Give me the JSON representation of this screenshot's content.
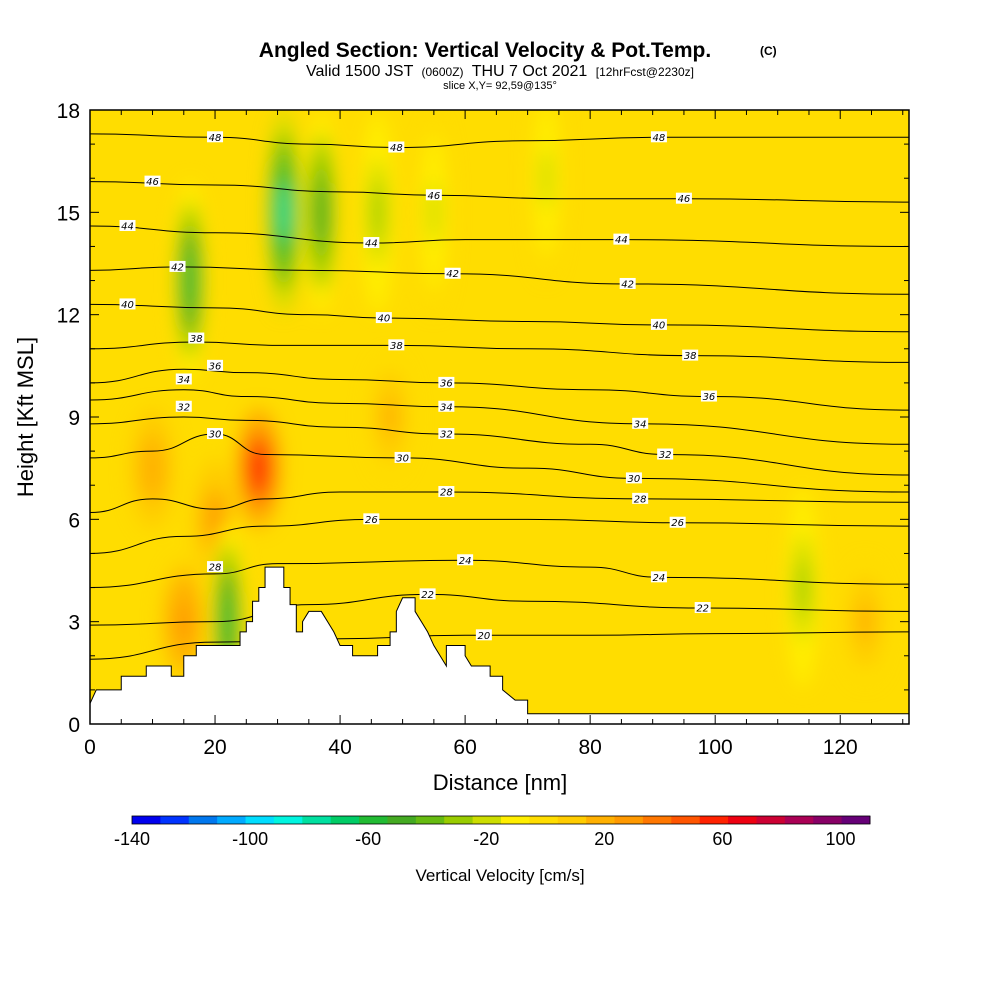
{
  "chart_data": {
    "type": "heatmap",
    "title": "Angled Section: Vertical Velocity & Pot.Temp.",
    "title_unit": "(C)",
    "subtitle_parts": [
      "Valid 1500 JST",
      "(0600Z)",
      "THU 7 Oct 2021",
      "[12hrFcst@2230z]"
    ],
    "slice_label": "slice X,Y= 92,59@135°",
    "xlabel": "Distance [nm]",
    "ylabel": "Height [Kft MSL]",
    "xlim": [
      0,
      131
    ],
    "ylim": [
      0,
      18
    ],
    "x_ticks": [
      0,
      20,
      40,
      60,
      80,
      100,
      120
    ],
    "y_ticks": [
      0,
      3,
      6,
      9,
      12,
      15,
      18
    ],
    "colorbar": {
      "label": "Vertical Velocity [cm/s]",
      "range": [
        -140,
        110
      ],
      "tick_labels": [
        -140,
        -100,
        -60,
        -20,
        20,
        60,
        100
      ],
      "colors": [
        "#0000ee",
        "#0033ff",
        "#0077ee",
        "#00aaff",
        "#00ddff",
        "#00f5e0",
        "#00e0a0",
        "#00cc66",
        "#22bb33",
        "#44aa22",
        "#66bb11",
        "#99cc00",
        "#ccdd00",
        "#ffee00",
        "#ffdd00",
        "#ffcc00",
        "#ffb000",
        "#ff9900",
        "#ff7700",
        "#ff5500",
        "#ff2200",
        "#ee0011",
        "#cc0033",
        "#aa0055",
        "#880066",
        "#660077"
      ]
    },
    "background_value": 0,
    "velocity_features": [
      {
        "type": "updraft",
        "x": 27,
        "y": 7.5,
        "peak": 60
      },
      {
        "type": "updraft",
        "x": 15,
        "y": 3.0,
        "peak": 30
      },
      {
        "type": "updraft",
        "x": 20,
        "y": 6.0,
        "peak": 25
      },
      {
        "type": "updraft",
        "x": 10,
        "y": 7.5,
        "peak": 20
      },
      {
        "type": "updraft",
        "x": 48,
        "y": 9.0,
        "peak": 15
      },
      {
        "type": "updraft",
        "x": 124,
        "y": 3.0,
        "peak": 15
      },
      {
        "type": "downdraft",
        "x": 31,
        "y": 15,
        "peak": -75
      },
      {
        "type": "downdraft",
        "x": 37,
        "y": 15,
        "peak": -50
      },
      {
        "type": "downdraft",
        "x": 16,
        "y": 13,
        "peak": -60
      },
      {
        "type": "downdraft",
        "x": 46,
        "y": 15,
        "peak": -25
      },
      {
        "type": "downdraft",
        "x": 55,
        "y": 15,
        "peak": -20
      },
      {
        "type": "downdraft",
        "x": 73,
        "y": 16,
        "peak": -20
      },
      {
        "type": "downdraft",
        "x": 114,
        "y": 4,
        "peak": -30
      },
      {
        "type": "downdraft",
        "x": 22,
        "y": 3,
        "peak": -60
      }
    ],
    "terrain": [
      [
        0,
        0.6
      ],
      [
        1,
        1.0
      ],
      [
        5,
        1.0
      ],
      [
        5,
        1.4
      ],
      [
        9,
        1.4
      ],
      [
        9,
        1.7
      ],
      [
        13,
        1.7
      ],
      [
        13,
        1.4
      ],
      [
        15,
        1.4
      ],
      [
        15,
        2.0
      ],
      [
        17,
        2.0
      ],
      [
        17,
        2.3
      ],
      [
        20,
        2.3
      ],
      [
        20,
        2.3
      ],
      [
        24,
        2.3
      ],
      [
        24,
        2.7
      ],
      [
        25,
        2.7
      ],
      [
        25,
        3.0
      ],
      [
        26,
        3.0
      ],
      [
        26,
        3.6
      ],
      [
        27,
        3.6
      ],
      [
        27,
        4.0
      ],
      [
        28,
        4.0
      ],
      [
        28,
        4.6
      ],
      [
        31,
        4.6
      ],
      [
        31,
        4.0
      ],
      [
        32,
        4.0
      ],
      [
        32,
        3.5
      ],
      [
        33,
        3.5
      ],
      [
        33,
        2.7
      ],
      [
        34,
        2.7
      ],
      [
        34,
        3.0
      ],
      [
        35,
        3.3
      ],
      [
        37,
        3.3
      ],
      [
        38,
        3.0
      ],
      [
        39,
        2.7
      ],
      [
        40,
        2.3
      ],
      [
        42,
        2.3
      ],
      [
        42,
        2.0
      ],
      [
        46,
        2.0
      ],
      [
        46,
        2.3
      ],
      [
        48,
        2.3
      ],
      [
        48,
        2.7
      ],
      [
        49,
        2.7
      ],
      [
        49,
        3.3
      ],
      [
        50,
        3.7
      ],
      [
        52,
        3.7
      ],
      [
        52,
        3.3
      ],
      [
        53,
        3.0
      ],
      [
        54,
        2.7
      ],
      [
        55,
        2.3
      ],
      [
        56,
        2.0
      ],
      [
        57,
        1.7
      ],
      [
        57,
        2.3
      ],
      [
        60,
        2.3
      ],
      [
        60,
        2.0
      ],
      [
        61,
        1.7
      ],
      [
        64,
        1.7
      ],
      [
        64,
        1.4
      ],
      [
        66,
        1.4
      ],
      [
        66,
        1.0
      ],
      [
        68,
        0.7
      ],
      [
        70,
        0.7
      ],
      [
        70,
        0.3
      ],
      [
        131,
        0.3
      ]
    ],
    "isentropes": [
      {
        "label": "20",
        "label_positions": [
          [
            63,
            2.6
          ]
        ],
        "points": [
          [
            0,
            1.9
          ],
          [
            20,
            2.4
          ],
          [
            40,
            2.5
          ],
          [
            60,
            2.6
          ],
          [
            80,
            2.6
          ],
          [
            100,
            2.65
          ],
          [
            131,
            2.7
          ]
        ]
      },
      {
        "label": "22",
        "label_positions": [
          [
            54,
            3.8
          ],
          [
            98,
            3.4
          ]
        ],
        "points": [
          [
            0,
            2.9
          ],
          [
            20,
            3.0
          ],
          [
            35,
            3.5
          ],
          [
            54,
            3.8
          ],
          [
            70,
            3.6
          ],
          [
            98,
            3.4
          ],
          [
            131,
            3.3
          ]
        ]
      },
      {
        "label": "24",
        "label_positions": [
          [
            60,
            4.8
          ],
          [
            91,
            4.3
          ]
        ],
        "points": [
          [
            0,
            4.0
          ],
          [
            20,
            4.4
          ],
          [
            30,
            4.7
          ],
          [
            60,
            4.8
          ],
          [
            80,
            4.6
          ],
          [
            91,
            4.3
          ],
          [
            131,
            4.1
          ]
        ]
      },
      {
        "label": "26",
        "label_positions": [
          [
            45,
            6.0
          ],
          [
            94,
            5.9
          ]
        ],
        "points": [
          [
            0,
            5.0
          ],
          [
            15,
            5.5
          ],
          [
            28,
            5.8
          ],
          [
            45,
            6.0
          ],
          [
            70,
            6.0
          ],
          [
            94,
            5.9
          ],
          [
            131,
            5.8
          ]
        ]
      },
      {
        "label": "28",
        "label_positions": [
          [
            20,
            4.6
          ],
          [
            57,
            6.8
          ],
          [
            88,
            6.6
          ]
        ],
        "points": [
          [
            0,
            6.2
          ],
          [
            10,
            6.6
          ],
          [
            20,
            6.3
          ],
          [
            28,
            6.6
          ],
          [
            40,
            6.8
          ],
          [
            57,
            6.8
          ],
          [
            88,
            6.6
          ],
          [
            131,
            6.5
          ]
        ]
      },
      {
        "label": "30",
        "label_positions": [
          [
            20,
            8.5
          ],
          [
            50,
            7.8
          ],
          [
            87,
            7.2
          ]
        ],
        "points": [
          [
            0,
            7.8
          ],
          [
            10,
            8.0
          ],
          [
            20,
            8.5
          ],
          [
            28,
            7.9
          ],
          [
            50,
            7.8
          ],
          [
            70,
            7.5
          ],
          [
            87,
            7.2
          ],
          [
            131,
            6.8
          ]
        ]
      },
      {
        "label": "32",
        "label_positions": [
          [
            15,
            9.3
          ],
          [
            57,
            8.5
          ],
          [
            92,
            7.9
          ]
        ],
        "points": [
          [
            0,
            8.8
          ],
          [
            15,
            9.0
          ],
          [
            25,
            8.9
          ],
          [
            40,
            8.7
          ],
          [
            57,
            8.5
          ],
          [
            80,
            8.2
          ],
          [
            92,
            7.9
          ],
          [
            131,
            7.3
          ]
        ]
      },
      {
        "label": "34",
        "label_positions": [
          [
            15,
            10.1
          ],
          [
            57,
            9.3
          ],
          [
            88,
            8.8
          ]
        ],
        "points": [
          [
            0,
            9.5
          ],
          [
            15,
            9.8
          ],
          [
            25,
            9.6
          ],
          [
            40,
            9.4
          ],
          [
            57,
            9.3
          ],
          [
            88,
            8.8
          ],
          [
            131,
            8.2
          ]
        ]
      },
      {
        "label": "36",
        "label_positions": [
          [
            20,
            10.5
          ],
          [
            57,
            10.0
          ],
          [
            99,
            9.6
          ]
        ],
        "points": [
          [
            0,
            10.0
          ],
          [
            15,
            10.4
          ],
          [
            25,
            10.3
          ],
          [
            40,
            10.1
          ],
          [
            57,
            10.0
          ],
          [
            80,
            9.8
          ],
          [
            99,
            9.6
          ],
          [
            131,
            9.2
          ]
        ]
      },
      {
        "label": "38",
        "label_positions": [
          [
            17,
            11.3
          ],
          [
            49,
            11.1
          ],
          [
            96,
            10.8
          ]
        ],
        "points": [
          [
            0,
            11.0
          ],
          [
            17,
            11.2
          ],
          [
            30,
            11.1
          ],
          [
            49,
            11.1
          ],
          [
            70,
            11.0
          ],
          [
            96,
            10.8
          ],
          [
            131,
            10.6
          ]
        ]
      },
      {
        "label": "40",
        "label_positions": [
          [
            6,
            12.3
          ],
          [
            47,
            11.9
          ],
          [
            91,
            11.7
          ]
        ],
        "points": [
          [
            0,
            12.3
          ],
          [
            20,
            12.2
          ],
          [
            35,
            12.0
          ],
          [
            47,
            11.9
          ],
          [
            70,
            11.8
          ],
          [
            91,
            11.7
          ],
          [
            131,
            11.5
          ]
        ]
      },
      {
        "label": "42",
        "label_positions": [
          [
            14,
            13.4
          ],
          [
            58,
            13.2
          ],
          [
            86,
            12.9
          ]
        ],
        "points": [
          [
            0,
            13.3
          ],
          [
            14,
            13.4
          ],
          [
            35,
            13.3
          ],
          [
            58,
            13.2
          ],
          [
            86,
            12.9
          ],
          [
            131,
            12.6
          ]
        ]
      },
      {
        "label": "44",
        "label_positions": [
          [
            6,
            14.6
          ],
          [
            45,
            14.1
          ],
          [
            85,
            14.2
          ]
        ],
        "points": [
          [
            0,
            14.6
          ],
          [
            20,
            14.4
          ],
          [
            45,
            14.1
          ],
          [
            60,
            14.2
          ],
          [
            85,
            14.2
          ],
          [
            131,
            14.0
          ]
        ]
      },
      {
        "label": "46",
        "label_positions": [
          [
            10,
            15.9
          ],
          [
            55,
            15.5
          ],
          [
            95,
            15.4
          ]
        ],
        "points": [
          [
            0,
            15.9
          ],
          [
            20,
            15.8
          ],
          [
            40,
            15.6
          ],
          [
            55,
            15.5
          ],
          [
            75,
            15.4
          ],
          [
            95,
            15.4
          ],
          [
            131,
            15.3
          ]
        ]
      },
      {
        "label": "48",
        "label_positions": [
          [
            20,
            17.2
          ],
          [
            49,
            16.9
          ],
          [
            91,
            17.2
          ]
        ],
        "points": [
          [
            0,
            17.3
          ],
          [
            20,
            17.2
          ],
          [
            35,
            17.0
          ],
          [
            49,
            16.9
          ],
          [
            70,
            17.1
          ],
          [
            91,
            17.2
          ],
          [
            131,
            17.2
          ]
        ]
      }
    ]
  }
}
